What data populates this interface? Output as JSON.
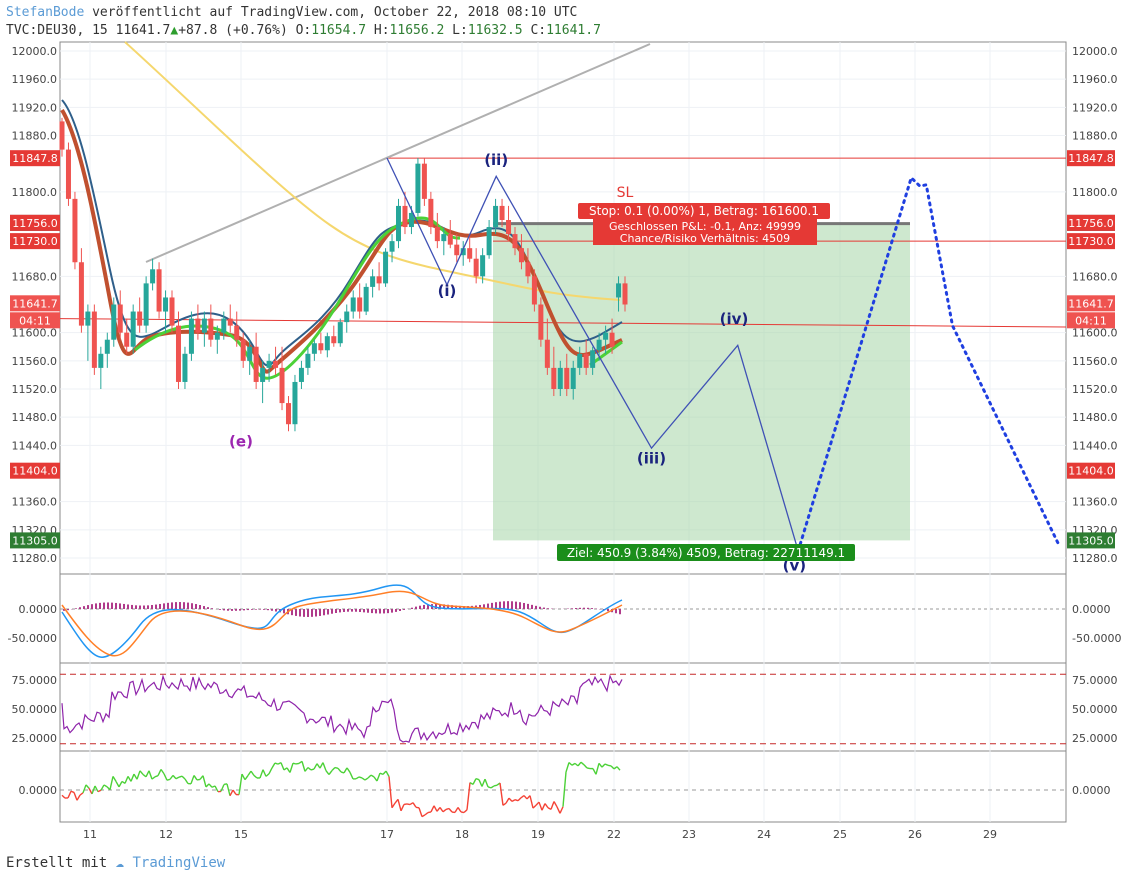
{
  "header": {
    "author": "StefanBode",
    "published": "veröffentlicht auf TradingView.com, October 22, 2018 08:10 UTC",
    "symbol": "TVC:DEU30, 15",
    "last": "11641.7",
    "arrow": "▲",
    "change": "+87.8 (+0.76%)",
    "o_label": "O:",
    "o": "11654.7",
    "h_label": "H:",
    "h": "11656.2",
    "l_label": "L:",
    "l": "11632.5",
    "c_label": "C:",
    "c": "11641.7"
  },
  "footer": {
    "created": "Erstellt mit",
    "brand": "TradingView"
  },
  "colors": {
    "up": "#26a69a",
    "down": "#ef5350",
    "redLine": "#e53935",
    "wave": "#3f51b5",
    "green": "#2e7d32",
    "purple": "#9c27b0"
  },
  "chart_data": {
    "type": "candlestick",
    "price_axis": {
      "ticks": [
        "12000.0",
        "11960.0",
        "11920.0",
        "11880.0",
        "11800.0",
        "11680.0",
        "11600.0",
        "11560.0",
        "11520.0",
        "11480.0",
        "11440.0",
        "11360.0",
        "11320.0",
        "11280.0"
      ],
      "ylim": [
        11260,
        12005
      ]
    },
    "price_tags": [
      {
        "value": 11847.8,
        "label": "11847.8",
        "color": "#e53935"
      },
      {
        "value": 11755.9,
        "label": "11755.9",
        "color": "#555555"
      },
      {
        "value": 11756.0,
        "label": "11756.0",
        "color": "#e53935"
      },
      {
        "value": 11730.0,
        "label": "11730.0",
        "color": "#e53935"
      },
      {
        "value": 11641.7,
        "label": "11641.7",
        "color": "#ef5350"
      },
      {
        "value": 11404.0,
        "label": "11404.0",
        "color": "#e53935"
      },
      {
        "value": 11305.0,
        "label": "11305.0",
        "color": "#2e7d32"
      }
    ],
    "countdown": "04:11",
    "x_ticks": [
      "11",
      "12",
      "15",
      "17",
      "18",
      "19",
      "22",
      "23",
      "24",
      "25",
      "26",
      "29"
    ],
    "annotations": {
      "sl": "SL",
      "stop_box": "Stop: 0.1 (0.00%) 1, Betrag: 161600.1",
      "pl_line": "Geschlossen P&L: -0.1, Anz: 49999",
      "ratio_line": "Chance/Risiko Verhältnis: 4509",
      "target_box": "Ziel: 450.9 (3.84%) 4509, Betrag: 22711149.1"
    },
    "wave_labels": [
      {
        "text": "(e)",
        "x_day": 15.0,
        "value": 11438,
        "color": "#9c27b0"
      },
      {
        "text": "(i)",
        "x_day": 17.8,
        "value": 11652,
        "color": "#1a237e"
      },
      {
        "text": "(ii)",
        "x_day": 18.45,
        "value": 11838,
        "color": "#1a237e"
      },
      {
        "text": "(iii)",
        "x_day": 22.5,
        "value": 11414,
        "color": "#1a237e"
      },
      {
        "text": "(iv)",
        "x_day": 23.6,
        "value": 11612,
        "color": "#1a237e"
      },
      {
        "text": "(v)",
        "x_day": 24.4,
        "value": 11262,
        "color": "#1a237e"
      }
    ],
    "wave_path": [
      [
        17.0,
        11848
      ],
      [
        17.8,
        11668
      ],
      [
        18.45,
        11822
      ],
      [
        22.5,
        11436
      ],
      [
        23.65,
        11582
      ],
      [
        24.45,
        11290
      ]
    ],
    "projection": [
      [
        24.45,
        11290
      ],
      [
        25.95,
        11820
      ],
      [
        26.2,
        11808
      ],
      [
        26.45,
        11810
      ],
      [
        27.5,
        11610
      ],
      [
        29.9,
        11300
      ]
    ],
    "trendline": [
      [
        11.3,
        11700
      ],
      [
        20.0,
        12005
      ]
    ],
    "candles": [
      {
        "x": 10.9,
        "o": 11900,
        "h": 11905,
        "l": 11850,
        "c": 11860
      },
      {
        "x": 10.95,
        "o": 11860,
        "h": 11870,
        "l": 11780,
        "c": 11790
      },
      {
        "x": 11.0,
        "o": 11790,
        "h": 11800,
        "l": 11690,
        "c": 11700
      },
      {
        "x": 11.05,
        "o": 11700,
        "h": 11720,
        "l": 11600,
        "c": 11610
      },
      {
        "x": 11.1,
        "o": 11610,
        "h": 11640,
        "l": 11560,
        "c": 11630
      },
      {
        "x": 11.15,
        "o": 11630,
        "h": 11640,
        "l": 11540,
        "c": 11550
      },
      {
        "x": 11.2,
        "o": 11550,
        "h": 11580,
        "l": 11520,
        "c": 11570
      },
      {
        "x": 11.25,
        "o": 11570,
        "h": 11600,
        "l": 11550,
        "c": 11590
      },
      {
        "x": 11.3,
        "o": 11590,
        "h": 11650,
        "l": 11580,
        "c": 11640
      },
      {
        "x": 11.35,
        "o": 11640,
        "h": 11660,
        "l": 11590,
        "c": 11600
      },
      {
        "x": 11.4,
        "o": 11600,
        "h": 11620,
        "l": 11570,
        "c": 11580
      },
      {
        "x": 11.45,
        "o": 11580,
        "h": 11640,
        "l": 11570,
        "c": 11630
      },
      {
        "x": 11.5,
        "o": 11630,
        "h": 11650,
        "l": 11600,
        "c": 11610
      },
      {
        "x": 11.55,
        "o": 11610,
        "h": 11680,
        "l": 11600,
        "c": 11670
      },
      {
        "x": 11.6,
        "o": 11670,
        "h": 11705,
        "l": 11660,
        "c": 11690
      },
      {
        "x": 11.65,
        "o": 11690,
        "h": 11700,
        "l": 11620,
        "c": 11630
      },
      {
        "x": 11.7,
        "o": 11630,
        "h": 11660,
        "l": 11600,
        "c": 11650
      },
      {
        "x": 11.75,
        "o": 11650,
        "h": 11660,
        "l": 11600,
        "c": 11610
      },
      {
        "x": 11.8,
        "o": 11610,
        "h": 11630,
        "l": 11520,
        "c": 11530
      },
      {
        "x": 11.85,
        "o": 11530,
        "h": 11580,
        "l": 11520,
        "c": 11570
      },
      {
        "x": 11.9,
        "o": 11570,
        "h": 11630,
        "l": 11560,
        "c": 11620
      },
      {
        "x": 11.95,
        "o": 11620,
        "h": 11640,
        "l": 11590,
        "c": 11600
      },
      {
        "x": 12.0,
        "o": 11600,
        "h": 11630,
        "l": 11580,
        "c": 11620
      },
      {
        "x": 12.05,
        "o": 11620,
        "h": 11640,
        "l": 11580,
        "c": 11590
      },
      {
        "x": 12.1,
        "o": 11590,
        "h": 11610,
        "l": 11570,
        "c": 11600
      },
      {
        "x": 12.15,
        "o": 11600,
        "h": 11630,
        "l": 11590,
        "c": 11620
      },
      {
        "x": 12.2,
        "o": 11620,
        "h": 11640,
        "l": 11600,
        "c": 11610
      },
      {
        "x": 12.25,
        "o": 11610,
        "h": 11630,
        "l": 11580,
        "c": 11590
      },
      {
        "x": 12.3,
        "o": 11590,
        "h": 11600,
        "l": 11550,
        "c": 11560
      },
      {
        "x": 12.35,
        "o": 11560,
        "h": 11590,
        "l": 11540,
        "c": 11580
      },
      {
        "x": 12.4,
        "o": 11580,
        "h": 11600,
        "l": 11520,
        "c": 11530
      },
      {
        "x": 12.45,
        "o": 11530,
        "h": 11560,
        "l": 11500,
        "c": 11550
      },
      {
        "x": 12.5,
        "o": 11550,
        "h": 11570,
        "l": 11530,
        "c": 11560
      },
      {
        "x": 12.55,
        "o": 11560,
        "h": 11580,
        "l": 11540,
        "c": 11550
      },
      {
        "x": 12.6,
        "o": 11550,
        "h": 11580,
        "l": 11490,
        "c": 11500
      },
      {
        "x": 12.65,
        "o": 11500,
        "h": 11510,
        "l": 11460,
        "c": 11470
      },
      {
        "x": 12.7,
        "o": 11470,
        "h": 11540,
        "l": 11460,
        "c": 11530
      },
      {
        "x": 12.75,
        "o": 11530,
        "h": 11560,
        "l": 11520,
        "c": 11550
      },
      {
        "x": 12.8,
        "o": 11550,
        "h": 11580,
        "l": 11540,
        "c": 11570
      },
      {
        "x": 12.85,
        "o": 11570,
        "h": 11590,
        "l": 11560,
        "c": 11585
      },
      {
        "x": 12.9,
        "o": 11585,
        "h": 11600,
        "l": 11570,
        "c": 11575
      },
      {
        "x": 12.95,
        "o": 11575,
        "h": 11600,
        "l": 11565,
        "c": 11595
      },
      {
        "x": 13.0,
        "o": 11595,
        "h": 11610,
        "l": 11580,
        "c": 11585
      },
      {
        "x": 13.05,
        "o": 11585,
        "h": 11620,
        "l": 11580,
        "c": 11615
      },
      {
        "x": 13.1,
        "o": 11615,
        "h": 11640,
        "l": 11600,
        "c": 11630
      },
      {
        "x": 13.15,
        "o": 11630,
        "h": 11660,
        "l": 11620,
        "c": 11650
      },
      {
        "x": 13.2,
        "o": 11650,
        "h": 11670,
        "l": 11620,
        "c": 11630
      },
      {
        "x": 13.25,
        "o": 11630,
        "h": 11670,
        "l": 11625,
        "c": 11665
      },
      {
        "x": 13.3,
        "o": 11665,
        "h": 11690,
        "l": 11650,
        "c": 11680
      },
      {
        "x": 13.35,
        "o": 11680,
        "h": 11700,
        "l": 11660,
        "c": 11670
      },
      {
        "x": 13.4,
        "o": 11670,
        "h": 11720,
        "l": 11665,
        "c": 11715
      },
      {
        "x": 13.45,
        "o": 11715,
        "h": 11740,
        "l": 11700,
        "c": 11730
      },
      {
        "x": 13.5,
        "o": 11730,
        "h": 11790,
        "l": 11720,
        "c": 11780
      },
      {
        "x": 13.55,
        "o": 11780,
        "h": 11800,
        "l": 11740,
        "c": 11750
      },
      {
        "x": 13.6,
        "o": 11750,
        "h": 11780,
        "l": 11740,
        "c": 11770
      },
      {
        "x": 13.65,
        "o": 11770,
        "h": 11848,
        "l": 11765,
        "c": 11840
      },
      {
        "x": 13.7,
        "o": 11840,
        "h": 11848,
        "l": 11780,
        "c": 11790
      },
      {
        "x": 13.75,
        "o": 11790,
        "h": 11800,
        "l": 11740,
        "c": 11750
      },
      {
        "x": 13.8,
        "o": 11750,
        "h": 11770,
        "l": 11720,
        "c": 11730
      },
      {
        "x": 13.85,
        "o": 11730,
        "h": 11750,
        "l": 11710,
        "c": 11740
      },
      {
        "x": 13.9,
        "o": 11740,
        "h": 11760,
        "l": 11720,
        "c": 11725
      },
      {
        "x": 13.95,
        "o": 11725,
        "h": 11740,
        "l": 11700,
        "c": 11710
      },
      {
        "x": 14.0,
        "o": 11710,
        "h": 11730,
        "l": 11695,
        "c": 11720
      },
      {
        "x": 14.05,
        "o": 11720,
        "h": 11740,
        "l": 11700,
        "c": 11705
      },
      {
        "x": 14.1,
        "o": 11705,
        "h": 11720,
        "l": 11670,
        "c": 11680
      },
      {
        "x": 14.15,
        "o": 11680,
        "h": 11720,
        "l": 11670,
        "c": 11710
      },
      {
        "x": 14.2,
        "o": 11710,
        "h": 11760,
        "l": 11705,
        "c": 11750
      },
      {
        "x": 14.25,
        "o": 11750,
        "h": 11790,
        "l": 11740,
        "c": 11780
      },
      {
        "x": 14.3,
        "o": 11780,
        "h": 11790,
        "l": 11750,
        "c": 11760
      },
      {
        "x": 14.35,
        "o": 11760,
        "h": 11780,
        "l": 11730,
        "c": 11740
      },
      {
        "x": 14.4,
        "o": 11740,
        "h": 11750,
        "l": 11710,
        "c": 11720
      },
      {
        "x": 14.45,
        "o": 11720,
        "h": 11740,
        "l": 11690,
        "c": 11700
      },
      {
        "x": 14.5,
        "o": 11700,
        "h": 11720,
        "l": 11670,
        "c": 11680
      },
      {
        "x": 14.55,
        "o": 11680,
        "h": 11690,
        "l": 11630,
        "c": 11640
      },
      {
        "x": 14.6,
        "o": 11640,
        "h": 11650,
        "l": 11580,
        "c": 11590
      },
      {
        "x": 14.65,
        "o": 11590,
        "h": 11620,
        "l": 11540,
        "c": 11550
      },
      {
        "x": 14.7,
        "o": 11550,
        "h": 11580,
        "l": 11510,
        "c": 11520
      },
      {
        "x": 14.75,
        "o": 11520,
        "h": 11560,
        "l": 11510,
        "c": 11550
      },
      {
        "x": 14.8,
        "o": 11550,
        "h": 11570,
        "l": 11510,
        "c": 11520
      },
      {
        "x": 14.85,
        "o": 11520,
        "h": 11560,
        "l": 11505,
        "c": 11550
      },
      {
        "x": 14.9,
        "o": 11550,
        "h": 11580,
        "l": 11540,
        "c": 11570
      },
      {
        "x": 14.95,
        "o": 11570,
        "h": 11590,
        "l": 11540,
        "c": 11550
      },
      {
        "x": 15.0,
        "o": 11550,
        "h": 11580,
        "l": 11540,
        "c": 11575
      },
      {
        "x": 15.05,
        "o": 11575,
        "h": 11600,
        "l": 11560,
        "c": 11590
      },
      {
        "x": 15.1,
        "o": 11590,
        "h": 11610,
        "l": 11570,
        "c": 11600
      },
      {
        "x": 15.15,
        "o": 11600,
        "h": 11620,
        "l": 11570,
        "c": 11580
      },
      {
        "x": 15.2,
        "o": 11650,
        "h": 11680,
        "l": 11630,
        "c": 11670
      },
      {
        "x": 15.25,
        "o": 11670,
        "h": 11680,
        "l": 11630,
        "c": 11640
      }
    ],
    "panel2": {
      "ticks": [
        "0.0000",
        "-50.0000"
      ],
      "ylim": [
        -75,
        30
      ]
    },
    "panel3": {
      "ticks": [
        "75.0000",
        "50.0000",
        "25.0000"
      ],
      "ylim": [
        15,
        90
      ],
      "levels": [
        80,
        20
      ]
    },
    "panel4": {
      "ticks": [
        "0.0000"
      ],
      "ylim": [
        -30,
        30
      ]
    }
  }
}
